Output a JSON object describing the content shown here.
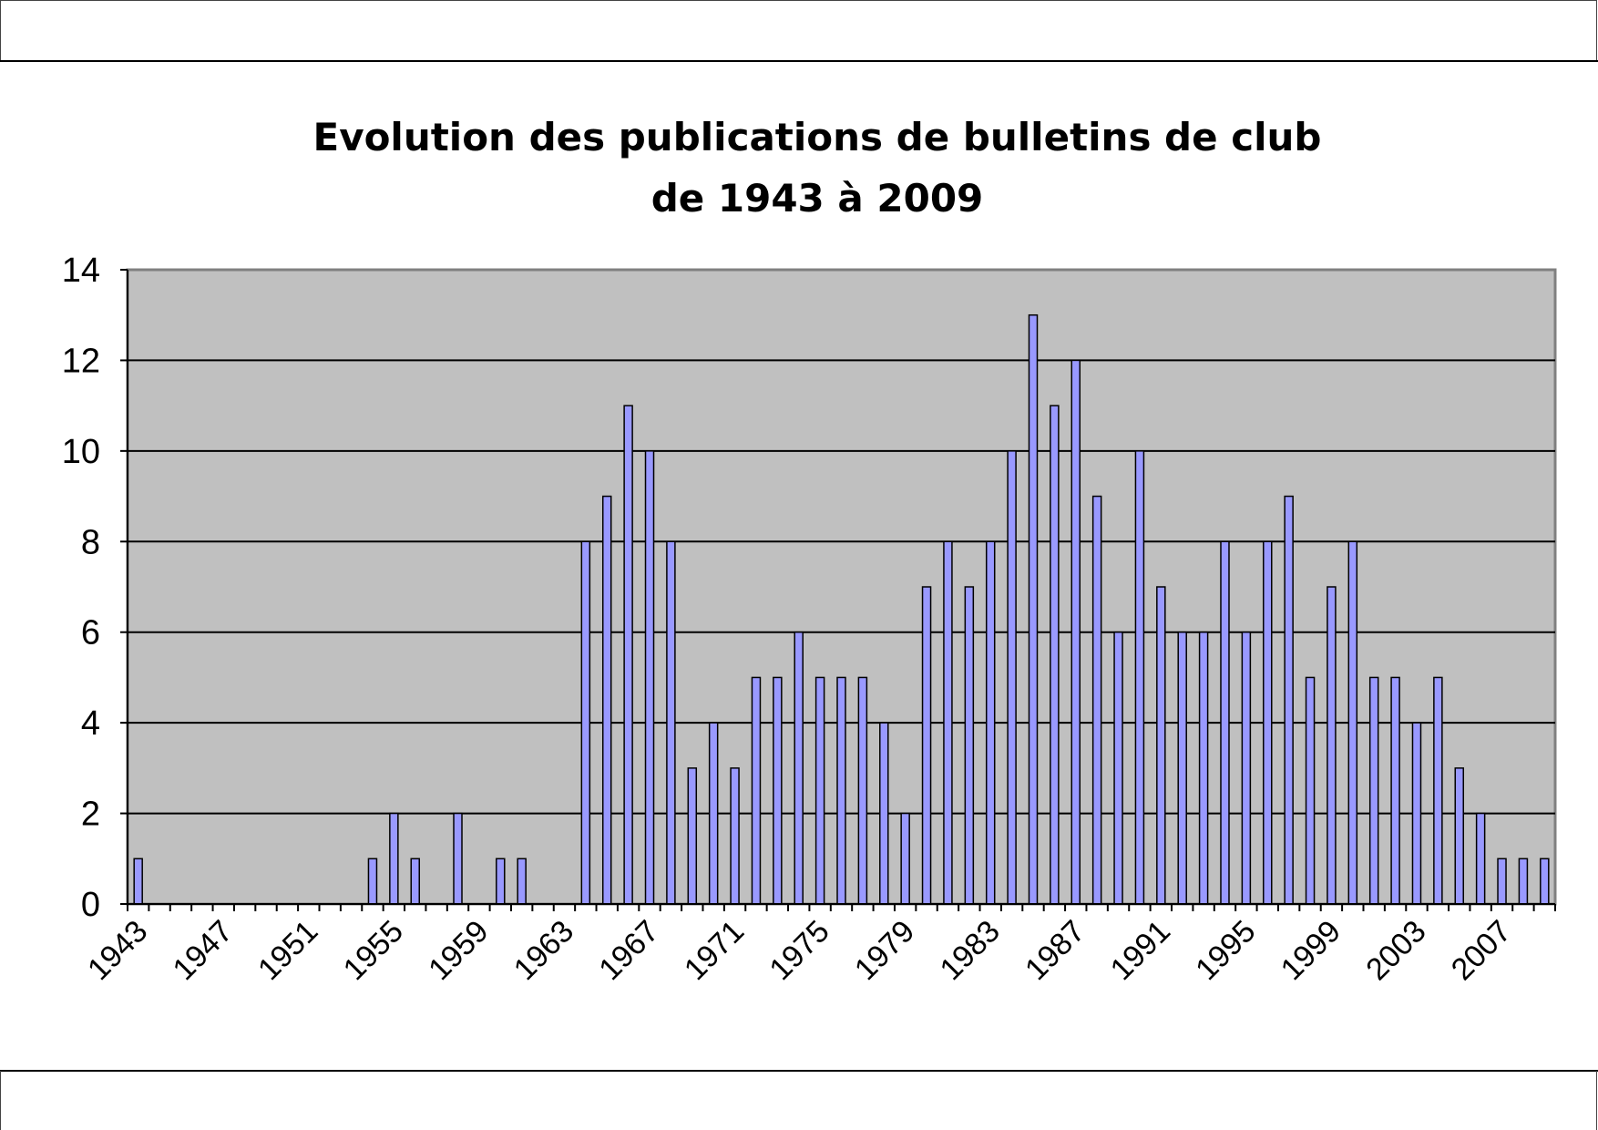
{
  "chart_data": {
    "type": "bar",
    "title": "Evolution des publications de bulletins de club",
    "subtitle": "de 1943 à 2009",
    "xlabel": "",
    "ylabel": "",
    "ylim": [
      0,
      14
    ],
    "yticks": [
      0,
      2,
      4,
      6,
      8,
      10,
      12,
      14
    ],
    "xtick_labels": [
      "1943",
      "1947",
      "1951",
      "1955",
      "1959",
      "1963",
      "1967",
      "1971",
      "1975",
      "1979",
      "1983",
      "1987",
      "1991",
      "1995",
      "1999",
      "2003",
      "2007"
    ],
    "grid": true,
    "legend": "none",
    "colors": {
      "plot_background": "#c0c0c0",
      "bar_fill": "#9999ff",
      "bar_stroke": "#000000",
      "gridline": "#000000"
    },
    "categories": [
      1943,
      1944,
      1945,
      1946,
      1947,
      1948,
      1949,
      1950,
      1951,
      1952,
      1953,
      1954,
      1955,
      1956,
      1957,
      1958,
      1959,
      1960,
      1961,
      1962,
      1963,
      1964,
      1965,
      1966,
      1967,
      1968,
      1969,
      1970,
      1971,
      1972,
      1973,
      1974,
      1975,
      1976,
      1977,
      1978,
      1979,
      1980,
      1981,
      1982,
      1983,
      1984,
      1985,
      1986,
      1987,
      1988,
      1989,
      1990,
      1991,
      1992,
      1993,
      1994,
      1995,
      1996,
      1997,
      1998,
      1999,
      2000,
      2001,
      2002,
      2003,
      2004,
      2005,
      2006,
      2007,
      2008,
      2009
    ],
    "values": [
      1,
      0,
      0,
      0,
      0,
      0,
      0,
      0,
      0,
      0,
      0,
      1,
      2,
      1,
      0,
      2,
      0,
      1,
      1,
      0,
      0,
      8,
      9,
      11,
      10,
      8,
      3,
      4,
      3,
      5,
      5,
      6,
      5,
      5,
      5,
      4,
      2,
      7,
      8,
      7,
      8,
      10,
      13,
      11,
      12,
      9,
      6,
      10,
      7,
      6,
      6,
      8,
      6,
      8,
      9,
      5,
      7,
      8,
      5,
      5,
      4,
      5,
      3,
      2,
      1,
      1,
      1
    ]
  }
}
